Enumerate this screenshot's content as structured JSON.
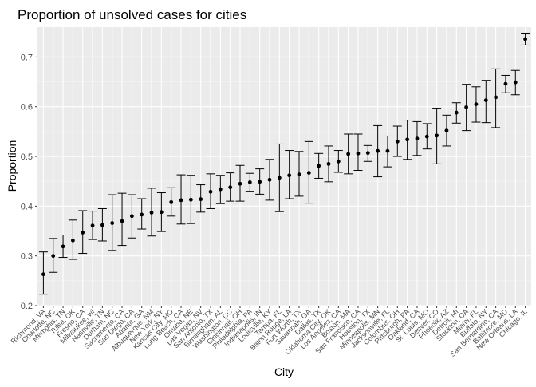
{
  "chart_data": {
    "type": "scatter",
    "title": "Proportion of unsolved cases for cities",
    "xlabel": "City",
    "ylabel": "Proportion",
    "ylim": [
      0.2,
      0.76
    ],
    "yticks": [
      "0.2",
      "0.3",
      "0.4",
      "0.5",
      "0.6",
      "0.7"
    ],
    "grid": true,
    "legend": "none",
    "categories": [
      "Richmond, VA",
      "Charlotte, NC",
      "Memphis, TN",
      "Tulsa, OK",
      "Fresno, CA",
      "Milwaukee, wI",
      "Nashville, TN",
      "Durham, NC",
      "Sacramento, CA",
      "San Diego, CA",
      "Atlanta, GA",
      "Albuquerque, NM",
      "New York, NY",
      "Kansas City, MO",
      "Long Beach, CA",
      "Omaha, NE",
      "Las Vegas, NV",
      "San Antonio, TX",
      "Birmingham, AL",
      "Washington, DC",
      "Cincinnati, OH",
      "Philadelphia, PA",
      "Indianapolis, IN",
      "Louisville, KY",
      "Tampa, FL",
      "Baton Rouge, LA",
      "Fort Worth, TX",
      "Savannah, GA",
      "Dallas, TX",
      "Oklahoma City, OK",
      "Los Angeles, CA",
      "Boston, MA",
      "San Francisco, CA",
      "Houston, TX",
      "Minneapolis, MN",
      "Jacksonville, FL",
      "Columbus, OH",
      "Pittsburgh, PA",
      "Oakland, CA",
      "St. Louis, MO",
      "Denver, CO",
      "Phoenix, AZ",
      "Detroit, MI",
      "Stockton, CA",
      "Miami, FL",
      "Buffalo, NY",
      "San Bernardino, CA",
      "Baltimore, MD",
      "New Orleans, LA",
      "Chicago, IL"
    ],
    "estimate": [
      0.263,
      0.3,
      0.319,
      0.331,
      0.347,
      0.361,
      0.362,
      0.366,
      0.37,
      0.38,
      0.383,
      0.387,
      0.388,
      0.408,
      0.412,
      0.413,
      0.414,
      0.429,
      0.434,
      0.438,
      0.445,
      0.448,
      0.449,
      0.453,
      0.457,
      0.462,
      0.464,
      0.467,
      0.481,
      0.485,
      0.49,
      0.505,
      0.506,
      0.507,
      0.511,
      0.511,
      0.53,
      0.534,
      0.536,
      0.54,
      0.542,
      0.552,
      0.588,
      0.599,
      0.605,
      0.613,
      0.619,
      0.646,
      0.649,
      0.736
    ],
    "conf_low": [
      0.223,
      0.267,
      0.297,
      0.293,
      0.305,
      0.333,
      0.33,
      0.311,
      0.321,
      0.336,
      0.354,
      0.34,
      0.349,
      0.38,
      0.364,
      0.365,
      0.388,
      0.395,
      0.405,
      0.41,
      0.41,
      0.43,
      0.424,
      0.412,
      0.389,
      0.415,
      0.42,
      0.406,
      0.456,
      0.449,
      0.468,
      0.465,
      0.472,
      0.49,
      0.459,
      0.479,
      0.5,
      0.494,
      0.502,
      0.515,
      0.485,
      0.521,
      0.567,
      0.552,
      0.569,
      0.568,
      0.558,
      0.628,
      0.624,
      0.724
    ],
    "conf_high": [
      0.308,
      0.335,
      0.342,
      0.372,
      0.391,
      0.39,
      0.395,
      0.423,
      0.426,
      0.423,
      0.415,
      0.436,
      0.427,
      0.437,
      0.463,
      0.462,
      0.443,
      0.465,
      0.462,
      0.467,
      0.482,
      0.466,
      0.475,
      0.494,
      0.525,
      0.512,
      0.51,
      0.53,
      0.506,
      0.521,
      0.512,
      0.545,
      0.545,
      0.522,
      0.562,
      0.541,
      0.561,
      0.573,
      0.57,
      0.566,
      0.597,
      0.583,
      0.608,
      0.645,
      0.64,
      0.653,
      0.676,
      0.663,
      0.673,
      0.748
    ]
  }
}
